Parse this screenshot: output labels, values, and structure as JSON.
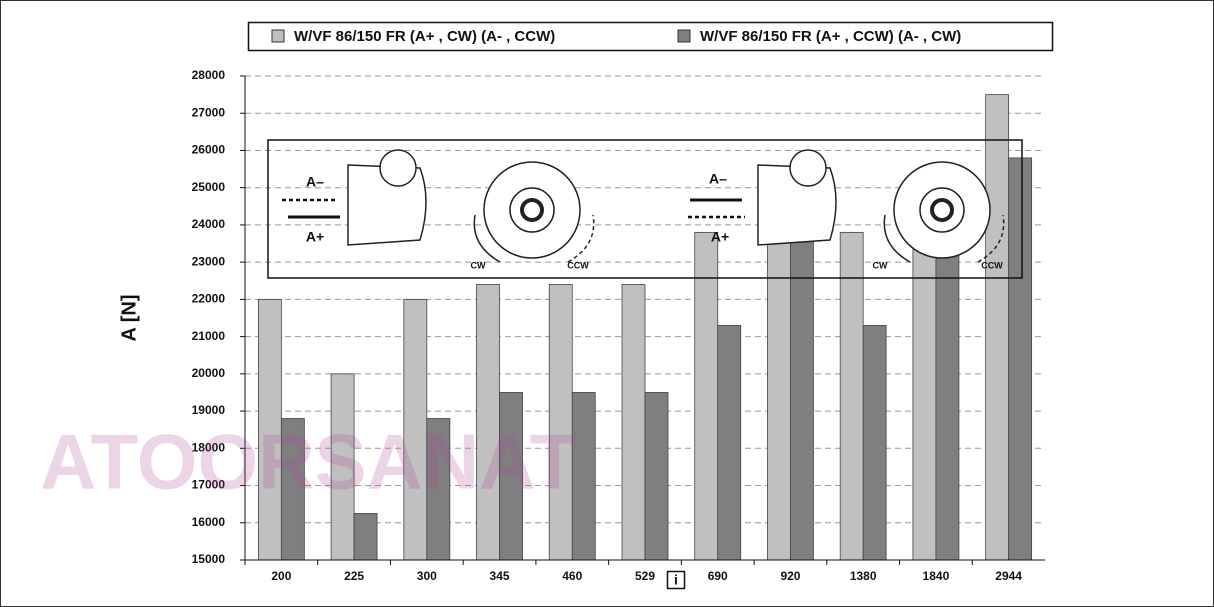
{
  "chart_data": {
    "type": "bar",
    "ylabel": "A [N]",
    "xlabel": "i",
    "categories": [
      "200",
      "225",
      "300",
      "345",
      "460",
      "529",
      "690",
      "920",
      "1380",
      "1840",
      "2944"
    ],
    "series": [
      {
        "name": "W/VF 86/150 FR (A+ , CW) (A- , CCW)",
        "color": "#c0c0c0",
        "values": [
          22000,
          20000,
          22000,
          22400,
          22400,
          22400,
          23800,
          25000,
          23800,
          24000,
          27500
        ]
      },
      {
        "name": "W/VF 86/150 FR (A+ , CCW) (A- , CW)",
        "color": "#7f7f7f",
        "values": [
          18800,
          16250,
          18800,
          19500,
          19500,
          19500,
          21300,
          24100,
          21300,
          24100,
          25800
        ]
      }
    ],
    "ylim": [
      15000,
      28000
    ],
    "yticks": [
      15000,
      16000,
      17000,
      18000,
      19000,
      20000,
      21000,
      22000,
      23000,
      24000,
      25000,
      26000,
      27000,
      28000
    ],
    "grid": true,
    "annotations": [
      "A–",
      "A+",
      "CW",
      "CCW",
      "A–",
      "A+",
      "CW",
      "CCW"
    ],
    "watermark": "ATOORSANAT"
  }
}
